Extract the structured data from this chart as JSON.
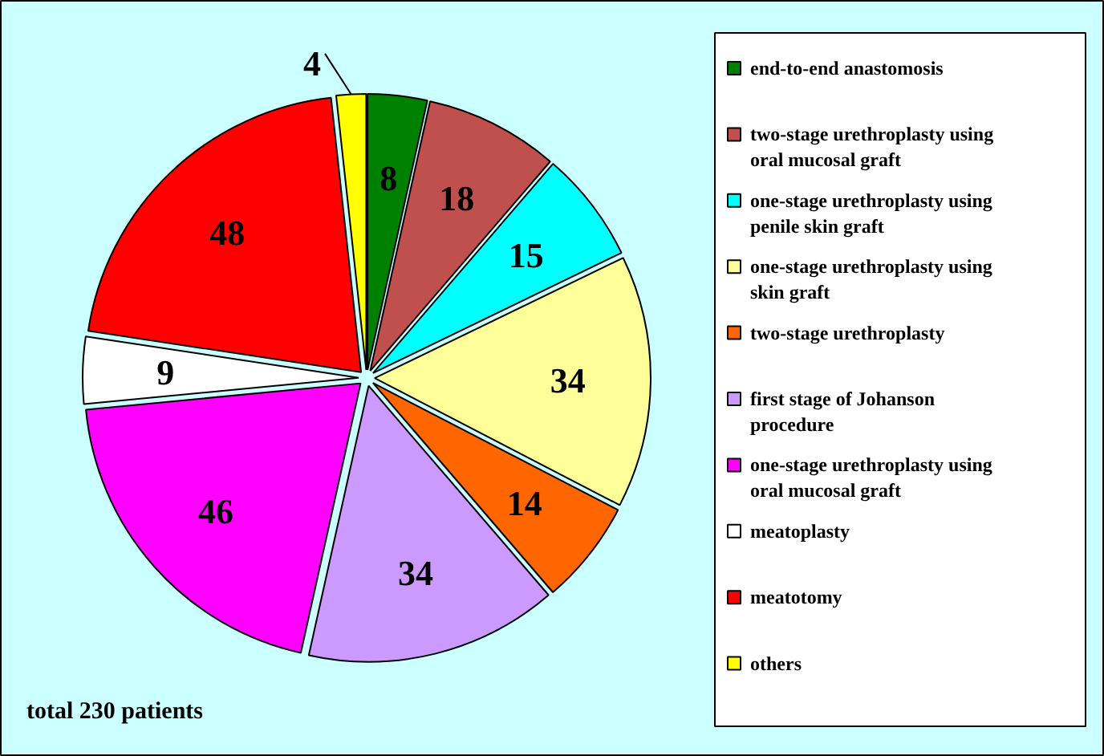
{
  "chart_data": {
    "type": "pie",
    "categories": [
      "end-to-end anastomosis",
      "two-stage urethroplasty using oral mucosal graft",
      "one-stage urethroplasty using penile skin graft",
      "one-stage urethroplasty using skin graft",
      "two-stage urethroplasty",
      "first stage of Johanson procedure",
      "one-stage urethroplasty using oral mucosal graft",
      "meatoplasty",
      "meatotomy",
      "others"
    ],
    "values": [
      8,
      18,
      15,
      34,
      14,
      34,
      46,
      9,
      48,
      4
    ],
    "colors": [
      "#008000",
      "#c0504d",
      "#00ffff",
      "#ffff99",
      "#ff6600",
      "#cc99ff",
      "#ff00ff",
      "#ffffff",
      "#ff0000",
      "#ffff00"
    ],
    "data_labels": true,
    "legend": "right",
    "annotations": [
      "total 230 patients"
    ]
  }
}
